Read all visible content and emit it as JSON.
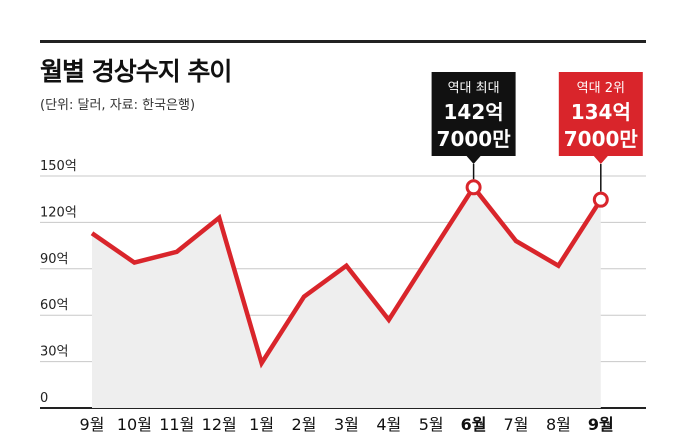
{
  "header": {
    "title": "월별 경상수지 추이",
    "subtitle": "(단위: 달러, 자료: 한국은행)"
  },
  "chart_data": {
    "type": "area",
    "title": "월별 경상수지 추이",
    "subtitle": "(단위: 달러, 자료: 한국은행)",
    "categories": [
      "9월",
      "10월",
      "11월",
      "12월",
      "1월",
      "2월",
      "3월",
      "4월",
      "5월",
      "6월",
      "7월",
      "8월",
      "9월"
    ],
    "values": [
      113,
      94,
      101,
      123,
      29,
      72,
      92,
      57,
      100,
      142.7,
      108,
      92,
      134.7
    ],
    "y_ticks": [
      "0",
      "30억",
      "60억",
      "90억",
      "120억",
      "150억"
    ],
    "ylim": [
      0,
      150
    ],
    "grid": true,
    "highlight_categories": [
      9,
      12
    ],
    "annotations": [
      {
        "index": 9,
        "label": "역대 최대",
        "value_line1": "142억",
        "value_line2": "7000만",
        "style": "dark"
      },
      {
        "index": 12,
        "label": "역대 2위",
        "value_line1": "134억",
        "value_line2": "7000만",
        "style": "red"
      }
    ],
    "colors": {
      "line": "#d9252b",
      "area": "#eeeeee",
      "dark_box": "#111111",
      "red_box": "#d9252b"
    }
  }
}
